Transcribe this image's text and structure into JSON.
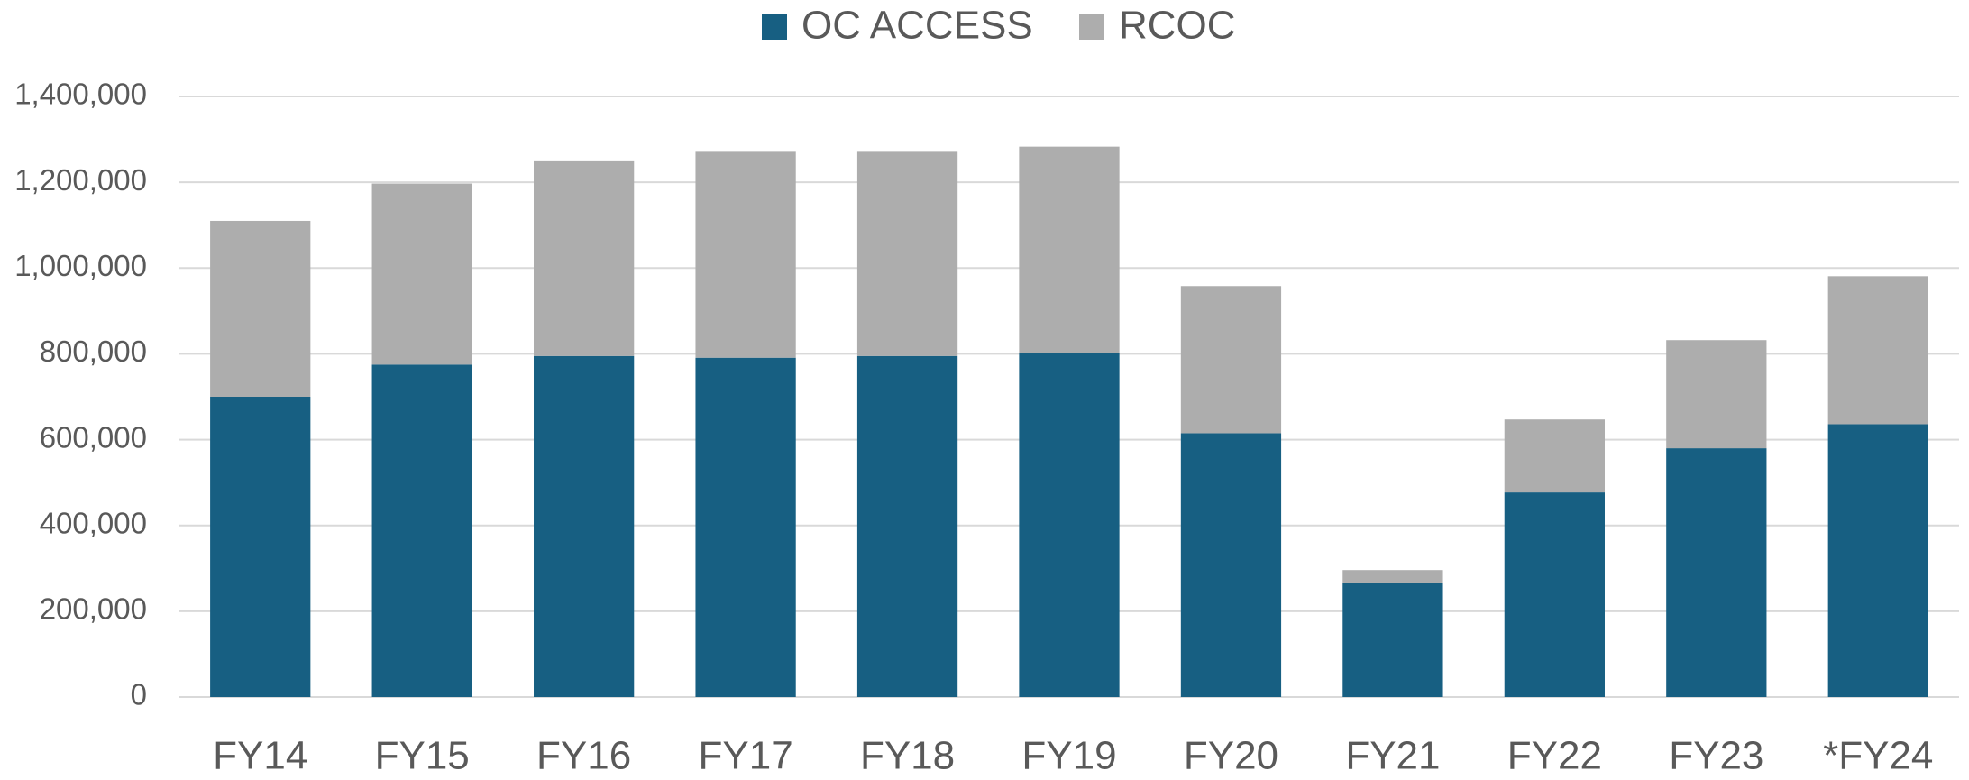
{
  "chart_data": {
    "type": "stacked_bar",
    "categories": [
      "FY14",
      "FY15",
      "FY16",
      "FY17",
      "FY18",
      "FY19",
      "FY20",
      "FY21",
      "FY22",
      "FY23",
      "*FY24"
    ],
    "series": [
      {
        "name": "OC ACCESS",
        "color": "#175f82",
        "values": [
          700000,
          775000,
          795000,
          791000,
          795000,
          803000,
          615000,
          267000,
          477000,
          580000,
          636000
        ]
      },
      {
        "name": "RCOC",
        "color": "#adadad",
        "values": [
          410000,
          422000,
          456000,
          480000,
          476000,
          480000,
          343000,
          29000,
          170000,
          252000,
          345000
        ]
      }
    ],
    "ylim": [
      0,
      1400000
    ],
    "yticks": [
      0,
      {
        "value": 200000,
        "label": "200,000"
      },
      {
        "value": 400000,
        "label": "400,000"
      },
      {
        "value": 600000,
        "label": "600,000"
      },
      {
        "value": 800000,
        "label": "800,000"
      },
      {
        "value": 1000000,
        "label": "1,000,000"
      },
      {
        "value": 1200000,
        "label": "1,200,000"
      },
      {
        "value": 1400000,
        "label": "1,400,000"
      }
    ],
    "grid": true,
    "legend": "top"
  }
}
